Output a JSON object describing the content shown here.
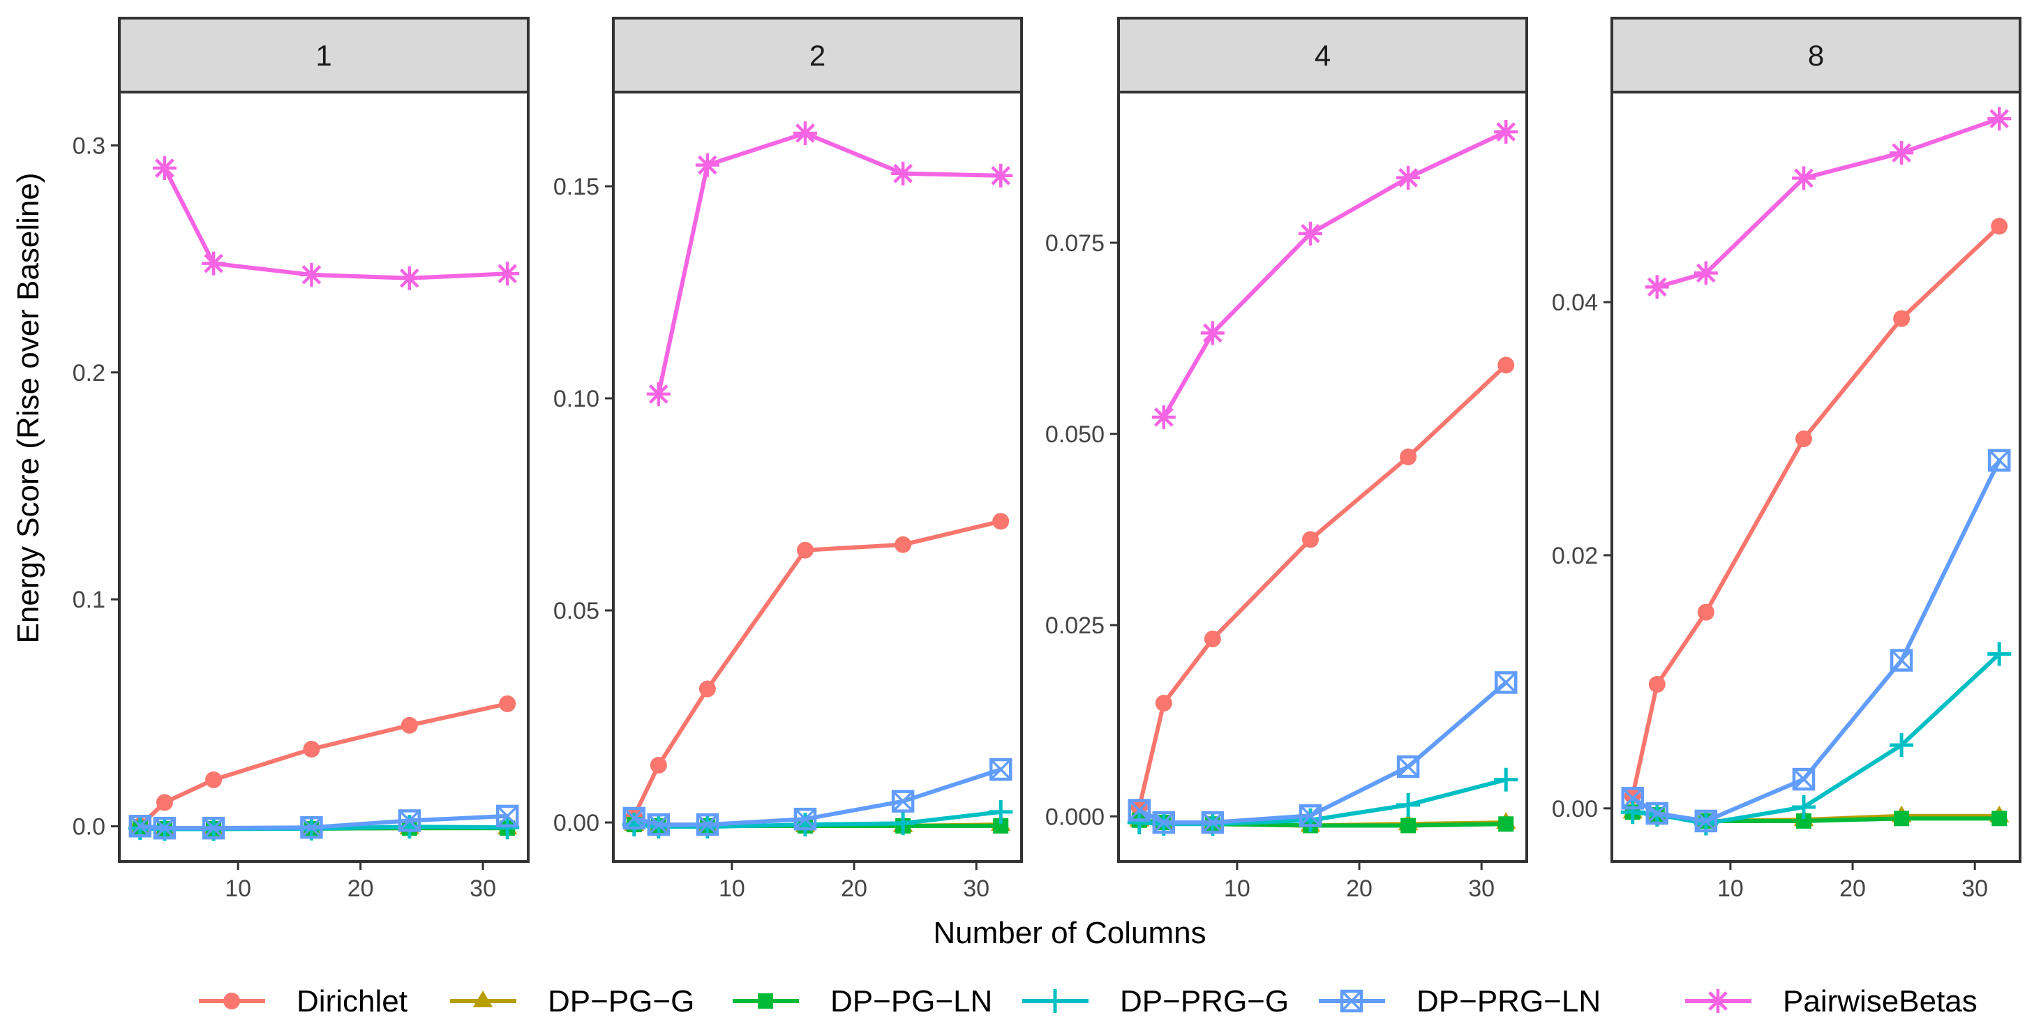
{
  "chart_data": {
    "type": "line",
    "title": "",
    "xlabel": "Number of Columns",
    "ylabel": "Energy Score (Rise over Baseline)",
    "x": [
      2,
      4,
      8,
      16,
      24,
      32
    ],
    "x_ticks": [
      10,
      20,
      30
    ],
    "xlim": [
      0.3,
      33.7
    ],
    "legend": {
      "position": "bottom",
      "entries": [
        "Dirichlet",
        "DP−PG−G",
        "DP−PG−LN",
        "DP−PRG−G",
        "DP−PRG−LN",
        "PairwiseBetas"
      ]
    },
    "series_styles": [
      {
        "name": "Dirichlet",
        "color": "#F8766D",
        "marker": "circle"
      },
      {
        "name": "DP−PG−G",
        "color": "#B79F00",
        "marker": "triangle"
      },
      {
        "name": "DP−PG−LN",
        "color": "#00BA38",
        "marker": "square"
      },
      {
        "name": "DP−PRG−G",
        "color": "#00BFC4",
        "marker": "plus"
      },
      {
        "name": "DP−PRG−LN",
        "color": "#619CFF",
        "marker": "boxx"
      },
      {
        "name": "PairwiseBetas",
        "color": "#F564E3",
        "marker": "asterisk"
      }
    ],
    "facets": [
      {
        "label": "1",
        "ylim": [
          -0.0155,
          0.3235
        ],
        "y_ticks": [
          0.0,
          0.1,
          0.2,
          0.3
        ],
        "y_tick_labels": [
          "0.0",
          "0.1",
          "0.2",
          "0.3"
        ],
        "series": [
          {
            "name": "Dirichlet",
            "values": [
              0.0002,
              0.0105,
              0.0205,
              0.034,
              0.0445,
              0.054
            ]
          },
          {
            "name": "DP−PG−G",
            "values": [
              -0.0008,
              -0.001,
              -0.001,
              -0.001,
              -0.0008,
              -0.0008
            ]
          },
          {
            "name": "DP−PG−LN",
            "values": [
              -0.0008,
              -0.001,
              -0.001,
              -0.001,
              -0.0008,
              -0.0008
            ]
          },
          {
            "name": "DP−PRG−G",
            "values": [
              -0.0008,
              -0.0012,
              -0.0012,
              -0.001,
              -0.0002,
              -0.0005
            ]
          },
          {
            "name": "DP−PRG−LN",
            "values": [
              0.0001,
              -0.0008,
              -0.0008,
              -0.0005,
              0.0025,
              0.0045
            ]
          },
          {
            "name": "PairwiseBetas",
            "values": [
              null,
              0.29,
              0.248,
              0.243,
              0.2415,
              0.2435
            ]
          }
        ]
      },
      {
        "label": "2",
        "ylim": [
          -0.0092,
          0.1722
        ],
        "y_ticks": [
          0.0,
          0.05,
          0.1,
          0.15
        ],
        "y_tick_labels": [
          "0.00",
          "0.05",
          "0.10",
          "0.15"
        ],
        "series": [
          {
            "name": "Dirichlet",
            "values": [
              0.0015,
              0.0135,
              0.0315,
              0.0642,
              0.0655,
              0.071
            ]
          },
          {
            "name": "DP−PG−G",
            "values": [
              -0.0005,
              -0.0008,
              -0.0008,
              -0.0008,
              -0.0008,
              -0.0005
            ]
          },
          {
            "name": "DP−PG−LN",
            "values": [
              -0.0005,
              -0.0008,
              -0.0008,
              -0.0008,
              -0.0008,
              -0.0008
            ]
          },
          {
            "name": "DP−PRG−G",
            "values": [
              -0.0005,
              -0.001,
              -0.001,
              -0.0005,
              -0.0002,
              0.0025
            ]
          },
          {
            "name": "DP−PRG−LN",
            "values": [
              0.001,
              -0.0005,
              -0.0005,
              0.0008,
              0.005,
              0.0125
            ]
          },
          {
            "name": "PairwiseBetas",
            "values": [
              null,
              0.101,
              0.155,
              0.1625,
              0.153,
              0.1525
            ]
          }
        ]
      },
      {
        "label": "4",
        "ylim": [
          -0.0059,
          0.0947
        ],
        "y_ticks": [
          0.0,
          0.025,
          0.05,
          0.075
        ],
        "y_tick_labels": [
          "0.000",
          "0.025",
          "0.050",
          "0.075"
        ],
        "series": [
          {
            "name": "Dirichlet",
            "values": [
              0.0012,
              0.0148,
              0.0232,
              0.0362,
              0.047,
              0.059
            ]
          },
          {
            "name": "DP−PG−G",
            "values": [
              -0.0005,
              -0.0008,
              -0.001,
              -0.0012,
              -0.001,
              -0.0008
            ]
          },
          {
            "name": "DP−PG−LN",
            "values": [
              -0.0005,
              -0.0008,
              -0.001,
              -0.0012,
              -0.0012,
              -0.001
            ]
          },
          {
            "name": "DP−PRG−G",
            "values": [
              -0.0008,
              -0.001,
              -0.001,
              -0.0005,
              0.0015,
              0.0048
            ]
          },
          {
            "name": "DP−PRG−LN",
            "values": [
              0.0008,
              -0.0008,
              -0.0008,
              0.0001,
              0.0065,
              0.0175
            ]
          },
          {
            "name": "PairwiseBetas",
            "values": [
              null,
              0.0522,
              0.0632,
              0.0762,
              0.0835,
              0.0895
            ]
          }
        ]
      },
      {
        "label": "8",
        "ylim": [
          -0.0042,
          0.0566
        ],
        "y_ticks": [
          0.0,
          0.02,
          0.04
        ],
        "y_tick_labels": [
          "0.00",
          "0.02",
          "0.04"
        ],
        "series": [
          {
            "name": "Dirichlet",
            "values": [
              0.001,
              0.0098,
              0.0155,
              0.0292,
              0.0387,
              0.046
            ]
          },
          {
            "name": "DP−PG−G",
            "values": [
              -0.0003,
              -0.0005,
              -0.001,
              -0.0009,
              -0.0006,
              -0.0006
            ]
          },
          {
            "name": "DP−PG−LN",
            "values": [
              -0.0003,
              -0.0005,
              -0.001,
              -0.001,
              -0.0008,
              -0.0008
            ]
          },
          {
            "name": "DP−PRG−G",
            "values": [
              -0.0003,
              -0.0005,
              -0.0012,
              0.0001,
              0.005,
              0.0122
            ]
          },
          {
            "name": "DP−PRG−LN",
            "values": [
              0.0008,
              -0.0004,
              -0.001,
              0.0023,
              0.0117,
              0.0275
            ]
          },
          {
            "name": "PairwiseBetas",
            "values": [
              null,
              0.0412,
              0.0423,
              0.0498,
              0.0518,
              0.0545
            ]
          }
        ]
      }
    ]
  }
}
